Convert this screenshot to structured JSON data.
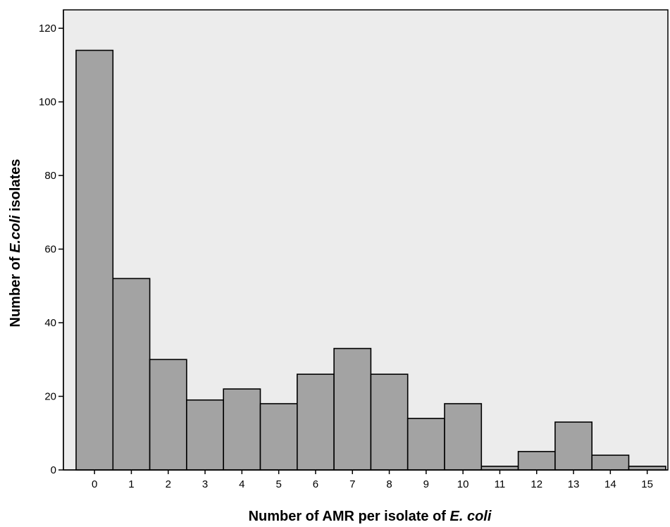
{
  "chart_data": {
    "type": "bar",
    "categories": [
      "0",
      "1",
      "2",
      "3",
      "4",
      "5",
      "6",
      "7",
      "8",
      "9",
      "10",
      "11",
      "12",
      "13",
      "14",
      "15"
    ],
    "values": [
      114,
      52,
      30,
      19,
      22,
      18,
      26,
      33,
      26,
      14,
      18,
      1,
      5,
      13,
      4,
      1
    ],
    "ylim": [
      0,
      125
    ],
    "yticks": [
      "0",
      "20",
      "40",
      "60",
      "80",
      "100",
      "120"
    ],
    "ylabel_parts": [
      {
        "text": "Number of ",
        "italic": false
      },
      {
        "text": "E.coli",
        "italic": true
      },
      {
        "text": " isolates",
        "italic": false
      }
    ],
    "xlabel_parts": [
      {
        "text": "Number of AMR per isolate of ",
        "italic": false
      },
      {
        "text": "E. coli",
        "italic": true
      }
    ],
    "grid": false,
    "colors": {
      "bar_fill": "#a3a3a3",
      "bar_stroke": "#000000",
      "plot_background": "#ececec"
    }
  }
}
